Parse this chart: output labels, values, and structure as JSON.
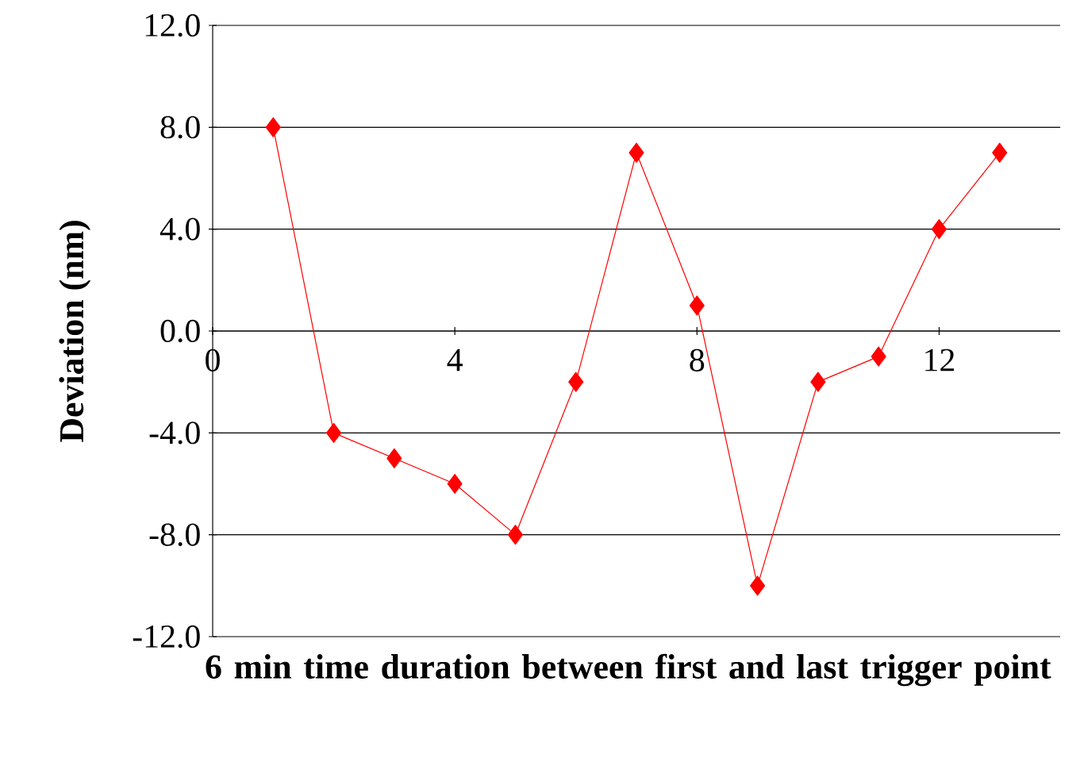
{
  "chart_data": {
    "type": "line",
    "xlabel": "6 min time duration between first and last trigger point",
    "ylabel": "Deviation (nm)",
    "x": [
      1,
      2,
      3,
      4,
      5,
      6,
      7,
      8,
      9,
      10,
      11,
      12,
      13
    ],
    "values": [
      8,
      -4,
      -5,
      -6,
      -8,
      -2,
      7,
      1,
      -10,
      -2,
      -1,
      4,
      7
    ],
    "color": "#ff0000",
    "marker": "diamond",
    "line_style": "solid",
    "grid": "y",
    "xlim": [
      0,
      14
    ],
    "xticks": [
      0,
      4,
      8,
      12
    ],
    "ylim": [
      -12,
      12
    ],
    "yticks": [
      {
        "value": -12,
        "label": "-12.0"
      },
      {
        "value": -8,
        "label": "-8.0"
      },
      {
        "value": -4,
        "label": "-4.0"
      },
      {
        "value": 0,
        "label": "0.0"
      },
      {
        "value": 4,
        "label": "4.0"
      },
      {
        "value": 8,
        "label": "8.0"
      },
      {
        "value": 12,
        "label": "12.0"
      }
    ]
  }
}
